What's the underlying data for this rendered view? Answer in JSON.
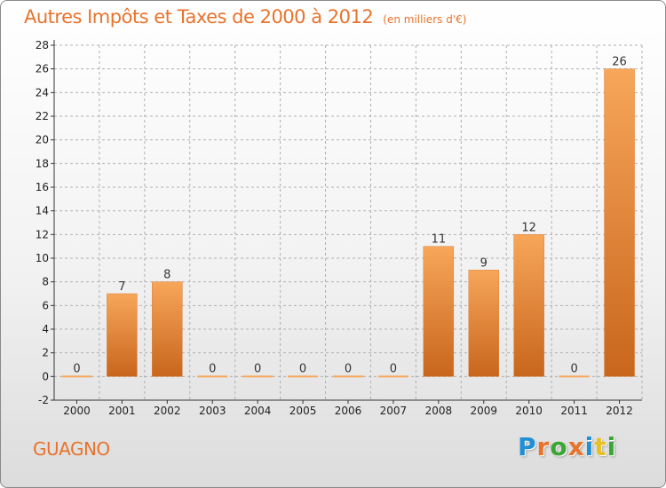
{
  "title": "Autres Impôts et Taxes de 2000 à 2012",
  "subtitle": "(en milliers d'€)",
  "commune": "GUAGNO",
  "brand": {
    "letters": [
      "P",
      "r",
      "o",
      "x",
      "i",
      "t",
      "i"
    ],
    "colors": [
      "#1f8fd6",
      "#e8732c",
      "#3aa635",
      "#e8732c",
      "#1f8fd6",
      "#e8c020",
      "#3aa635"
    ]
  },
  "colors": {
    "accent": "#e8732c",
    "bar_top": "#f7a65a",
    "bar_bottom": "#c8661c",
    "grid": "#b0b0b0"
  },
  "chart_data": {
    "type": "bar",
    "categories": [
      "2000",
      "2001",
      "2002",
      "2003",
      "2004",
      "2005",
      "2006",
      "2007",
      "2008",
      "2009",
      "2010",
      "2011",
      "2012"
    ],
    "values": [
      0,
      7,
      8,
      0,
      0,
      0,
      0,
      0,
      11,
      9,
      12,
      0,
      26
    ],
    "ylim": [
      -2,
      28
    ],
    "yticks": [
      "-2",
      "0",
      "2",
      "4",
      "6",
      "8",
      "10",
      "12",
      "14",
      "16",
      "18",
      "20",
      "22",
      "24",
      "26",
      "28"
    ],
    "grid": true
  }
}
